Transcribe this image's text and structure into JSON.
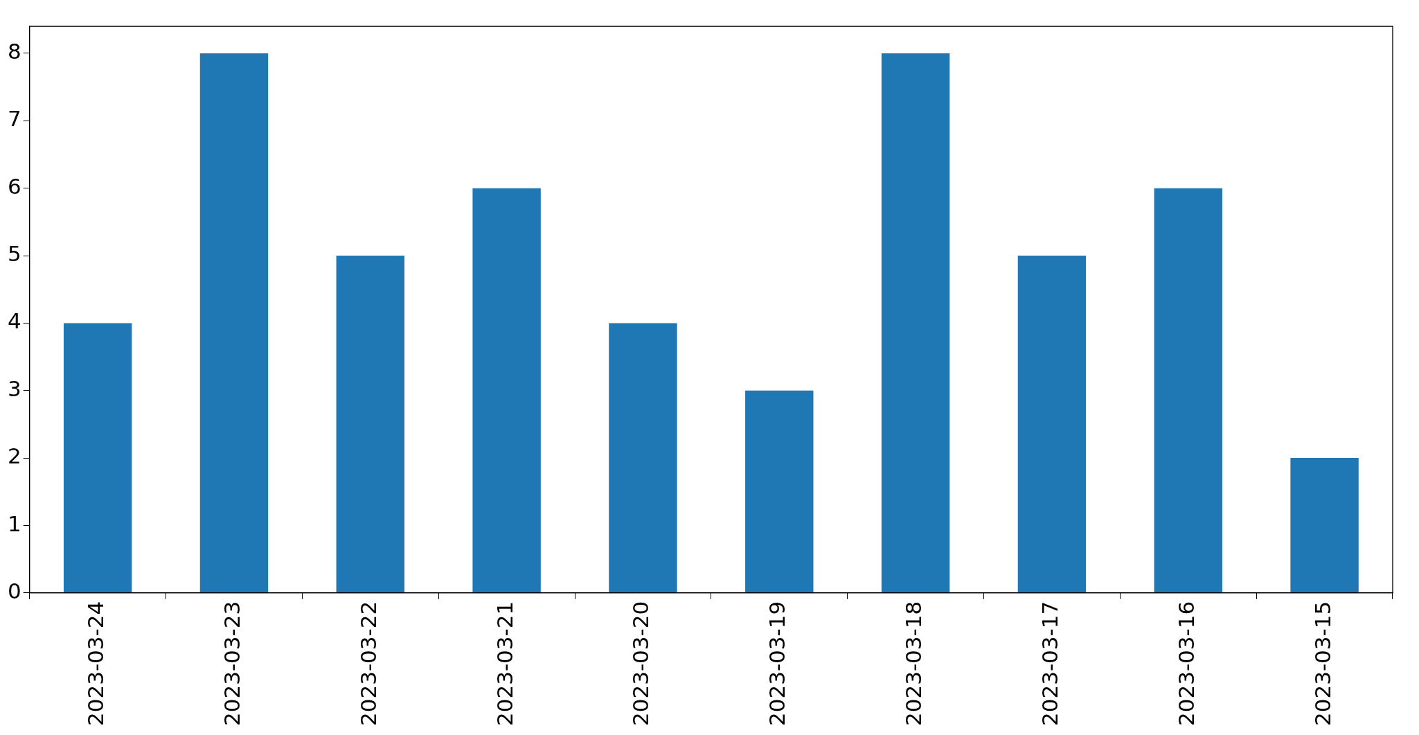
{
  "chart_data": {
    "type": "bar",
    "categories": [
      "2023-03-24",
      "2023-03-23",
      "2023-03-22",
      "2023-03-21",
      "2023-03-20",
      "2023-03-19",
      "2023-03-18",
      "2023-03-17",
      "2023-03-16",
      "2023-03-15"
    ],
    "values": [
      4,
      8,
      5,
      6,
      4,
      3,
      8,
      5,
      6,
      2
    ],
    "color": "#1f77b4",
    "ylim": [
      0,
      8.4
    ],
    "yticks": [
      0,
      1,
      2,
      3,
      4,
      5,
      6,
      7,
      8
    ],
    "grid": false,
    "legend": false
  }
}
